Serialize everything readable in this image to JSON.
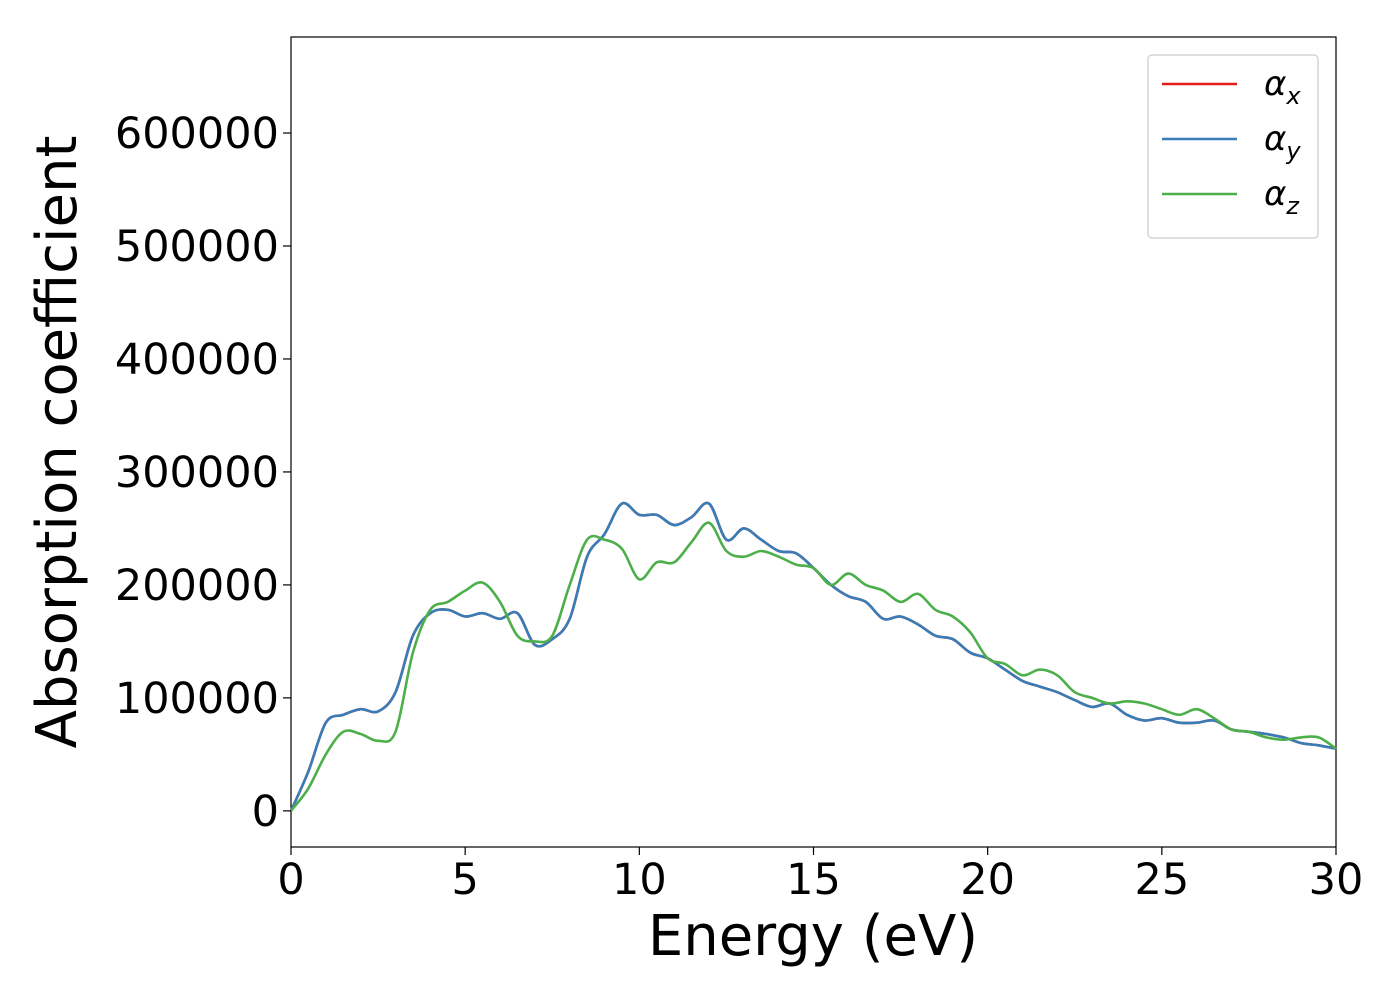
{
  "chart_data": {
    "type": "line",
    "xlabel": "Energy (eV)",
    "ylabel": "Absorption coefficient",
    "xlim": [
      0,
      30
    ],
    "ylim": [
      -32000,
      685000
    ],
    "x_ticks": [
      0,
      5,
      10,
      15,
      20,
      25,
      30
    ],
    "x_tick_labels": [
      "0",
      "5",
      "10",
      "15",
      "20",
      "25",
      "30"
    ],
    "y_ticks": [
      0,
      100000,
      200000,
      300000,
      400000,
      500000,
      600000
    ],
    "y_tick_labels": [
      "0",
      "100000",
      "200000",
      "300000",
      "400000",
      "500000",
      "600000"
    ],
    "grid": false,
    "legend_position": "top-right",
    "series": [
      {
        "name": "αx",
        "legend_base": "α",
        "legend_sub": "x",
        "color": "#e41a1c",
        "x": [
          0,
          0.5,
          1.0,
          1.5,
          2.0,
          2.5,
          3.0,
          3.5,
          4.0,
          4.5,
          5.0,
          5.5,
          6.0,
          6.5,
          7.0,
          7.5,
          8.0,
          8.5,
          9.0,
          9.5,
          10.0,
          10.5,
          11.0,
          11.5,
          12.0,
          12.5,
          13.0,
          13.5,
          14.0,
          14.5,
          15.0,
          15.5,
          16.0,
          16.5,
          17.0,
          17.5,
          18.0,
          18.5,
          19.0,
          19.5,
          20.0,
          20.5,
          21.0,
          21.5,
          22.0,
          22.5,
          23.0,
          23.5,
          24.0,
          24.5,
          25.0,
          25.5,
          26.0,
          26.5,
          27.0,
          27.5,
          28.0,
          28.5,
          29.0,
          29.5,
          30.0
        ],
        "values": [
          0,
          35000,
          78000,
          85000,
          90000,
          88000,
          105000,
          155000,
          175000,
          178000,
          172000,
          175000,
          170000,
          175000,
          147000,
          152000,
          170000,
          225000,
          245000,
          272000,
          262000,
          262000,
          253000,
          260000,
          272000,
          240000,
          250000,
          240000,
          230000,
          228000,
          215000,
          200000,
          190000,
          185000,
          170000,
          172000,
          165000,
          155000,
          152000,
          140000,
          135000,
          125000,
          115000,
          110000,
          105000,
          98000,
          92000,
          95000,
          85000,
          80000,
          82000,
          78000,
          78000,
          80000,
          72000,
          70000,
          68000,
          65000,
          60000,
          58000,
          55000
        ]
      },
      {
        "name": "αy",
        "legend_base": "α",
        "legend_sub": "y",
        "color": "#377eb8",
        "x": [
          0,
          0.5,
          1.0,
          1.5,
          2.0,
          2.5,
          3.0,
          3.5,
          4.0,
          4.5,
          5.0,
          5.5,
          6.0,
          6.5,
          7.0,
          7.5,
          8.0,
          8.5,
          9.0,
          9.5,
          10.0,
          10.5,
          11.0,
          11.5,
          12.0,
          12.5,
          13.0,
          13.5,
          14.0,
          14.5,
          15.0,
          15.5,
          16.0,
          16.5,
          17.0,
          17.5,
          18.0,
          18.5,
          19.0,
          19.5,
          20.0,
          20.5,
          21.0,
          21.5,
          22.0,
          22.5,
          23.0,
          23.5,
          24.0,
          24.5,
          25.0,
          25.5,
          26.0,
          26.5,
          27.0,
          27.5,
          28.0,
          28.5,
          29.0,
          29.5,
          30.0
        ],
        "values": [
          0,
          35000,
          78000,
          85000,
          90000,
          88000,
          105000,
          155000,
          175000,
          178000,
          172000,
          175000,
          170000,
          175000,
          147000,
          152000,
          170000,
          225000,
          245000,
          272000,
          262000,
          262000,
          253000,
          260000,
          272000,
          240000,
          250000,
          240000,
          230000,
          228000,
          215000,
          200000,
          190000,
          185000,
          170000,
          172000,
          165000,
          155000,
          152000,
          140000,
          135000,
          125000,
          115000,
          110000,
          105000,
          98000,
          92000,
          95000,
          85000,
          80000,
          82000,
          78000,
          78000,
          80000,
          72000,
          70000,
          68000,
          65000,
          60000,
          58000,
          55000
        ]
      },
      {
        "name": "αz",
        "legend_base": "α",
        "legend_sub": "z",
        "color": "#4daf4a",
        "x": [
          0,
          0.5,
          1.0,
          1.5,
          2.0,
          2.5,
          3.0,
          3.5,
          4.0,
          4.5,
          5.0,
          5.5,
          6.0,
          6.5,
          7.0,
          7.5,
          8.0,
          8.5,
          9.0,
          9.5,
          10.0,
          10.5,
          11.0,
          11.5,
          12.0,
          12.5,
          13.0,
          13.5,
          14.0,
          14.5,
          15.0,
          15.5,
          16.0,
          16.5,
          17.0,
          17.5,
          18.0,
          18.5,
          19.0,
          19.5,
          20.0,
          20.5,
          21.0,
          21.5,
          22.0,
          22.5,
          23.0,
          23.5,
          24.0,
          24.5,
          25.0,
          25.5,
          26.0,
          26.5,
          27.0,
          27.5,
          28.0,
          28.5,
          29.0,
          29.5,
          30.0
        ],
        "values": [
          0,
          20000,
          50000,
          70000,
          68000,
          62000,
          70000,
          140000,
          178000,
          185000,
          195000,
          202000,
          185000,
          155000,
          150000,
          155000,
          200000,
          240000,
          240000,
          232000,
          205000,
          220000,
          220000,
          238000,
          255000,
          230000,
          225000,
          230000,
          225000,
          218000,
          215000,
          200000,
          210000,
          200000,
          195000,
          185000,
          192000,
          178000,
          172000,
          158000,
          135000,
          130000,
          120000,
          125000,
          120000,
          105000,
          100000,
          95000,
          97000,
          95000,
          90000,
          85000,
          90000,
          82000,
          72000,
          70000,
          65000,
          63000,
          65000,
          65000,
          55000
        ]
      }
    ]
  }
}
